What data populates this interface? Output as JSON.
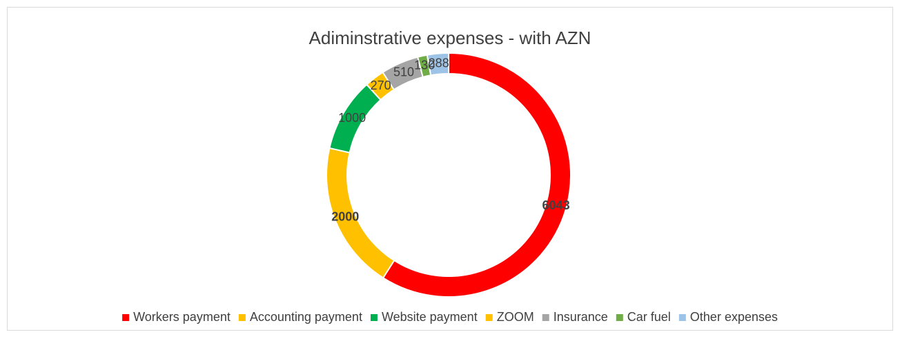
{
  "chart_data": {
    "type": "donut",
    "title": "Adiminstrative expenses - with AZN",
    "categories": [
      "Workers payment",
      "Accounting payment",
      "Website payment",
      "ZOOM",
      "Insurance",
      "Car fuel",
      "Other expenses"
    ],
    "values": [
      6043,
      2000,
      1000,
      270,
      510,
      130,
      288
    ],
    "colors": [
      "#ff0000",
      "#ffc000",
      "#00b050",
      "#ffc000",
      "#a5a5a5",
      "#70ad47",
      "#9dc3e6"
    ],
    "legend": "bottom"
  }
}
